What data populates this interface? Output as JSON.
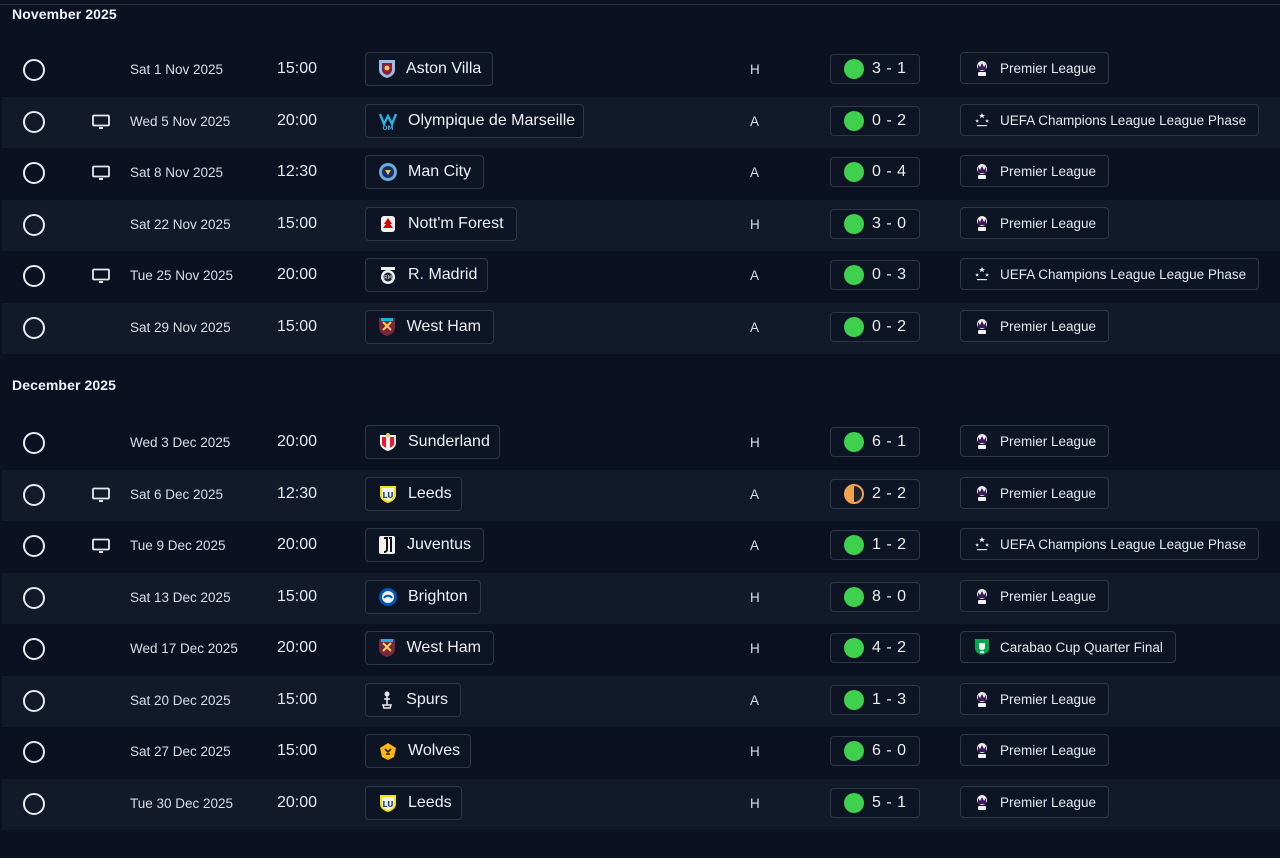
{
  "colors": {
    "win": "#3fd14e",
    "draw_left": "#f2a24e",
    "draw_right": "#1b2232",
    "background": "#0b1120",
    "alt_row": "#121a29"
  },
  "months": [
    {
      "label": "November 2025",
      "fixtures": [
        {
          "tv": false,
          "date": "Sat 1 Nov 2025",
          "time": "15:00",
          "team": "Aston Villa",
          "crest": "aston-villa-crest-icon",
          "venue": "H",
          "result": "win",
          "score": "3 - 1",
          "competition": "Premier League",
          "comp_icon": "premier-league-icon"
        },
        {
          "tv": true,
          "date": "Wed 5 Nov 2025",
          "time": "20:00",
          "team": "Olympique de Marseille",
          "crest": "marseille-crest-icon",
          "venue": "A",
          "result": "win",
          "score": "0 - 2",
          "competition": "UEFA Champions League League Phase",
          "comp_icon": "champions-league-icon"
        },
        {
          "tv": true,
          "date": "Sat 8 Nov 2025",
          "time": "12:30",
          "team": "Man City",
          "crest": "man-city-crest-icon",
          "venue": "A",
          "result": "win",
          "score": "0 - 4",
          "competition": "Premier League",
          "comp_icon": "premier-league-icon"
        },
        {
          "tv": false,
          "date": "Sat 22 Nov 2025",
          "time": "15:00",
          "team": "Nott'm Forest",
          "crest": "forest-crest-icon",
          "venue": "H",
          "result": "win",
          "score": "3 - 0",
          "competition": "Premier League",
          "comp_icon": "premier-league-icon"
        },
        {
          "tv": true,
          "date": "Tue 25 Nov 2025",
          "time": "20:00",
          "team": "R. Madrid",
          "crest": "real-madrid-crest-icon",
          "venue": "A",
          "result": "win",
          "score": "0 - 3",
          "competition": "UEFA Champions League League Phase",
          "comp_icon": "champions-league-icon"
        },
        {
          "tv": false,
          "date": "Sat 29 Nov 2025",
          "time": "15:00",
          "team": "West Ham",
          "crest": "west-ham-crest-icon",
          "venue": "A",
          "result": "win",
          "score": "0 - 2",
          "competition": "Premier League",
          "comp_icon": "premier-league-icon"
        }
      ]
    },
    {
      "label": "December 2025",
      "fixtures": [
        {
          "tv": false,
          "date": "Wed 3 Dec 2025",
          "time": "20:00",
          "team": "Sunderland",
          "crest": "sunderland-crest-icon",
          "venue": "H",
          "result": "win",
          "score": "6 - 1",
          "competition": "Premier League",
          "comp_icon": "premier-league-icon"
        },
        {
          "tv": true,
          "date": "Sat 6 Dec 2025",
          "time": "12:30",
          "team": "Leeds",
          "crest": "leeds-crest-icon",
          "venue": "A",
          "result": "draw",
          "score": "2 - 2",
          "competition": "Premier League",
          "comp_icon": "premier-league-icon"
        },
        {
          "tv": true,
          "date": "Tue 9 Dec 2025",
          "time": "20:00",
          "team": "Juventus",
          "crest": "juventus-crest-icon",
          "venue": "A",
          "result": "win",
          "score": "1 - 2",
          "competition": "UEFA Champions League League Phase",
          "comp_icon": "champions-league-icon"
        },
        {
          "tv": false,
          "date": "Sat 13 Dec 2025",
          "time": "15:00",
          "team": "Brighton",
          "crest": "brighton-crest-icon",
          "venue": "H",
          "result": "win",
          "score": "8 - 0",
          "competition": "Premier League",
          "comp_icon": "premier-league-icon"
        },
        {
          "tv": false,
          "date": "Wed 17 Dec 2025",
          "time": "20:00",
          "team": "West Ham",
          "crest": "west-ham-crest-icon",
          "venue": "H",
          "result": "win",
          "score": "4 - 2",
          "competition": "Carabao Cup Quarter Final",
          "comp_icon": "carabao-cup-icon"
        },
        {
          "tv": false,
          "date": "Sat 20 Dec 2025",
          "time": "15:00",
          "team": "Spurs",
          "crest": "spurs-crest-icon",
          "venue": "A",
          "result": "win",
          "score": "1 - 3",
          "competition": "Premier League",
          "comp_icon": "premier-league-icon"
        },
        {
          "tv": false,
          "date": "Sat 27 Dec 2025",
          "time": "15:00",
          "team": "Wolves",
          "crest": "wolves-crest-icon",
          "venue": "H",
          "result": "win",
          "score": "6 - 0",
          "competition": "Premier League",
          "comp_icon": "premier-league-icon"
        },
        {
          "tv": false,
          "date": "Tue 30 Dec 2025",
          "time": "20:00",
          "team": "Leeds",
          "crest": "leeds-crest-icon",
          "venue": "H",
          "result": "win",
          "score": "5 - 1",
          "competition": "Premier League",
          "comp_icon": "premier-league-icon"
        }
      ]
    }
  ]
}
